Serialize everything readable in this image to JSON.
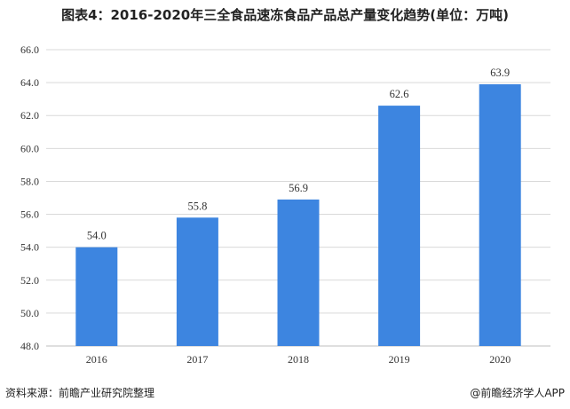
{
  "chart_data": {
    "type": "bar",
    "title": "图表4：2016-2020年三全食品速冻食品产品总产量变化趋势(单位：万吨)",
    "categories": [
      "2016",
      "2017",
      "2018",
      "2019",
      "2020"
    ],
    "values": [
      54.0,
      55.8,
      56.9,
      62.6,
      63.9
    ],
    "value_labels": [
      "54.0",
      "55.8",
      "56.9",
      "62.6",
      "63.9"
    ],
    "ylim": [
      48,
      66
    ],
    "yticks": [
      "48.0",
      "50.0",
      "52.0",
      "54.0",
      "56.0",
      "58.0",
      "60.0",
      "62.0",
      "64.0",
      "66.0"
    ],
    "grid": true,
    "bar_color": "#3d85e0",
    "grid_color": "#d9d9d9"
  },
  "footer": {
    "source": "资料来源：前瞻产业研究院整理",
    "brand": "@前瞻经济学人APP"
  }
}
